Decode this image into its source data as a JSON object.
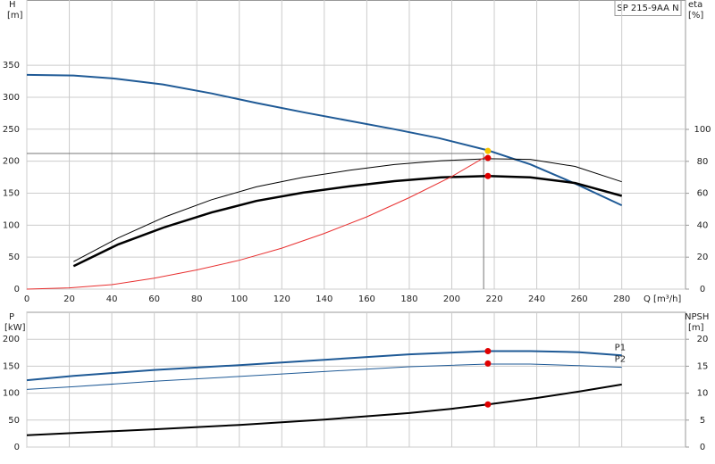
{
  "chart_data": [
    {
      "type": "line",
      "legend_text": "SP 215-9AA N",
      "x_label": "Q [m³/h]",
      "y_label": "H",
      "y_unit": "[m]",
      "y2_label": "eta",
      "y2_unit": "[%]",
      "xlim": [
        0,
        310
      ],
      "xticks": [
        0,
        20,
        40,
        60,
        80,
        100,
        120,
        140,
        160,
        180,
        200,
        220,
        240,
        260,
        280
      ],
      "ylim": [
        0,
        452
      ],
      "yticks": [
        0,
        50,
        100,
        150,
        200,
        250,
        300,
        350
      ],
      "y2lim": [
        0,
        181
      ],
      "y2ticks": [
        0,
        20,
        40,
        60,
        80,
        100
      ],
      "grid": true,
      "series": [
        {
          "color": "#1f5a96",
          "width": 2,
          "x": [
            0,
            22,
            42,
            64,
            87,
            108,
            131,
            152,
            173,
            194,
            217,
            237,
            258,
            280
          ],
          "values": [
            335,
            334,
            329,
            320,
            306,
            291,
            276,
            263,
            250,
            236,
            217,
            195,
            165,
            131
          ]
        },
        {
          "color": "#000000",
          "width": 1,
          "axis": "y2",
          "x": [
            22,
            43,
            65,
            87,
            108,
            130,
            152,
            173,
            195,
            217,
            237,
            258,
            280
          ],
          "values": [
            17.2,
            32,
            45.2,
            56,
            64,
            70,
            74.4,
            78,
            80.4,
            81.6,
            81.2,
            76.8,
            67.2
          ]
        },
        {
          "color": "#000000",
          "width": 2.5,
          "axis": "y2",
          "x": [
            22,
            43,
            65,
            87,
            108,
            130,
            152,
            173,
            195,
            217,
            237,
            258,
            280
          ],
          "values": [
            14.4,
            28,
            38.8,
            48,
            55.2,
            60.4,
            64.4,
            67.6,
            70,
            70.8,
            70,
            66.4,
            58.4
          ]
        },
        {
          "color": "#e83030",
          "width": 1,
          "x": [
            0,
            20,
            40,
            60,
            80,
            100,
            120,
            140,
            160,
            180,
            200,
            216
          ],
          "values": [
            0,
            2,
            7,
            17,
            30,
            45,
            64,
            87,
            113,
            143,
            176,
            207
          ]
        }
      ],
      "crosshair": {
        "x": 215,
        "y": 212
      },
      "points": [
        {
          "x": 217,
          "y": 205,
          "color": "#e00000"
        },
        {
          "x": 217,
          "y": 70.8,
          "axis": "y2",
          "color": "#e00000"
        },
        {
          "x": 217,
          "y": 216,
          "color": "#f5c400"
        }
      ]
    },
    {
      "type": "line",
      "y_label": "P",
      "y_unit": "[kW]",
      "y2_label": "NPSH",
      "y2_unit": "[m]",
      "xlim": [
        0,
        310
      ],
      "xticks": [
        0,
        20,
        40,
        60,
        80,
        100,
        120,
        140,
        160,
        180,
        200,
        220,
        240,
        260,
        280
      ],
      "ylim": [
        0,
        250
      ],
      "yticks": [
        0,
        50,
        100,
        150,
        200
      ],
      "y2lim": [
        0,
        25
      ],
      "y2ticks": [
        0,
        5,
        10,
        15,
        20
      ],
      "grid": true,
      "series": [
        {
          "name": "P1",
          "color": "#1f5a96",
          "width": 2,
          "x": [
            0,
            22,
            60,
            100,
            140,
            180,
            217,
            237,
            260,
            280
          ],
          "values": [
            124,
            132,
            143,
            152,
            162,
            172,
            178,
            178,
            176,
            170
          ]
        },
        {
          "name": "P2",
          "color": "#1f5a96",
          "width": 1,
          "x": [
            0,
            22,
            60,
            100,
            140,
            180,
            217,
            237,
            260,
            280
          ],
          "values": [
            107,
            112,
            122,
            131,
            140,
            149,
            154,
            154,
            151,
            148
          ]
        },
        {
          "color": "#000000",
          "width": 2,
          "axis": "y2",
          "x": [
            0,
            22,
            60,
            100,
            140,
            180,
            200,
            217,
            240,
            260,
            280
          ],
          "values": [
            2.2,
            2.6,
            3.3,
            4.1,
            5.1,
            6.3,
            7.1,
            7.9,
            9.1,
            10.3,
            11.6
          ]
        }
      ],
      "points": [
        {
          "x": 217,
          "y": 178,
          "color": "#e00000"
        },
        {
          "x": 217,
          "y": 155,
          "color": "#e00000"
        },
        {
          "x": 217,
          "y": 7.9,
          "axis": "y2",
          "color": "#e00000"
        }
      ]
    }
  ]
}
